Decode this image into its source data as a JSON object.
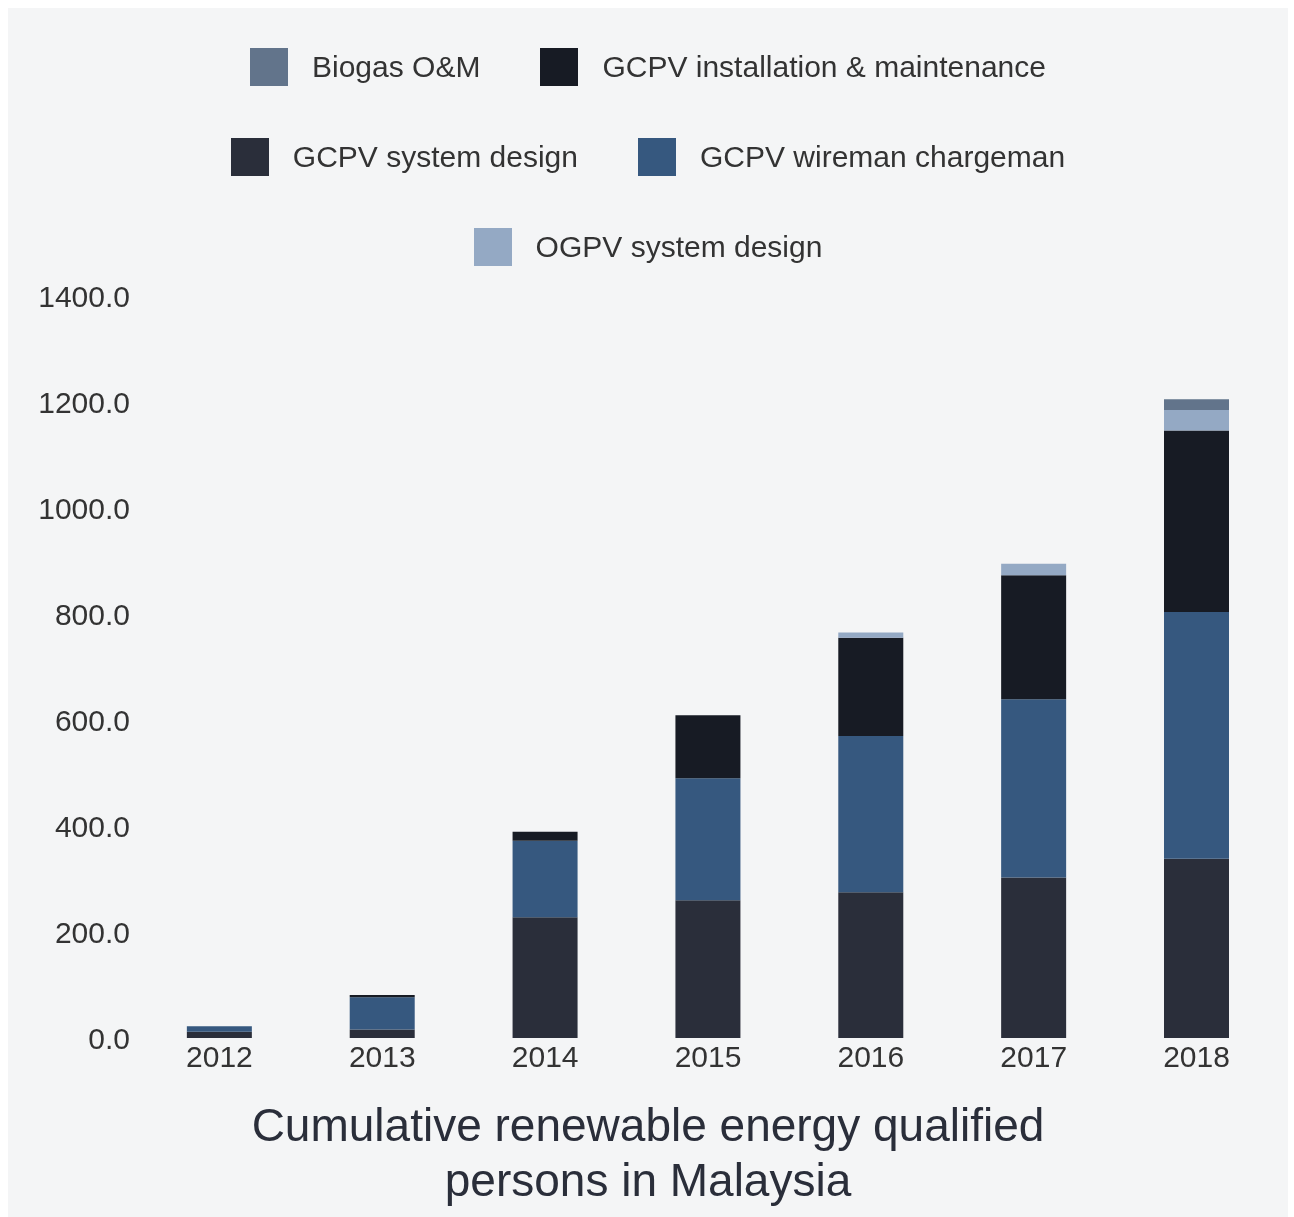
{
  "chart_data": {
    "type": "bar",
    "title": "Cumulative renewable energy qualified persons in Malaysia",
    "categories": [
      "2012",
      "2013",
      "2014",
      "2015",
      "2016",
      "2017",
      "2018"
    ],
    "stacked": true,
    "legend": "top",
    "ylim": [
      0,
      1400
    ],
    "yticks": [
      {
        "value": 0,
        "label": "0.0"
      },
      {
        "value": 200,
        "label": "200.0"
      },
      {
        "value": 400,
        "label": "400.0"
      },
      {
        "value": 600,
        "label": "600.0"
      },
      {
        "value": 800,
        "label": "800.0"
      },
      {
        "value": 1000,
        "label": "1000.0"
      },
      {
        "value": 1200,
        "label": "1200.0"
      },
      {
        "value": 1400,
        "label": "1400.0"
      }
    ],
    "series": [
      {
        "name": "GCPV system design",
        "color": "#2a2e3a",
        "values": [
          12,
          16,
          228,
          260,
          275,
          303,
          338
        ]
      },
      {
        "name": "GCPV wireman chargeman",
        "color": "#36587f",
        "values": [
          10,
          61,
          144,
          230,
          295,
          336,
          466
        ]
      },
      {
        "name": "GCPV installation & maintenance",
        "color": "#171b24",
        "values": [
          0,
          4,
          17,
          119,
          185,
          234,
          342
        ]
      },
      {
        "name": "OGPV system design",
        "color": "#94a9c4",
        "values": [
          0,
          0,
          0,
          0,
          10,
          22,
          39
        ]
      },
      {
        "name": "Biogas O&M",
        "color": "#62748b",
        "values": [
          0,
          0,
          0,
          0,
          0,
          0,
          20
        ]
      }
    ]
  }
}
